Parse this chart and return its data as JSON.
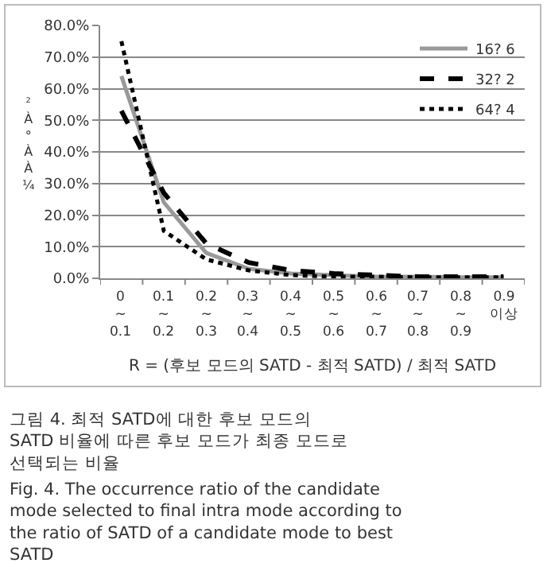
{
  "chart_data": {
    "type": "line",
    "categories": [
      "0 ~ 0.1",
      "0.1 ~ 0.2",
      "0.2 ~ 0.3",
      "0.3 ~ 0.4",
      "0.4 ~ 0.5",
      "0.5 ~ 0.6",
      "0.6 ~ 0.7",
      "0.7 ~ 0.8",
      "0.8 ~ 0.9",
      "0.9 이상"
    ],
    "series": [
      {
        "name": "16? 6",
        "color": "#999999",
        "line_style": "solid",
        "values": [
          64,
          24,
          8,
          3,
          1.5,
          1,
          0.5,
          0.5,
          0.3,
          0.3
        ]
      },
      {
        "name": "32? 2",
        "color": "#000000",
        "line_style": "dashed",
        "values": [
          53,
          27,
          11,
          5,
          2.5,
          1.5,
          1,
          0.5,
          0.5,
          0.5
        ]
      },
      {
        "name": "64? 4",
        "color": "#000000",
        "line_style": "dotted",
        "values": [
          75,
          15,
          6,
          2.5,
          1,
          0.5,
          0.5,
          0.3,
          0.3,
          0.3
        ]
      }
    ],
    "ylabel": "²À°ÀÀ¼",
    "xlabel": "R = (후보 모드의 SATD - 최적 SATD) / 최적 SATD",
    "ylim": [
      0,
      80
    ],
    "yticks": [
      {
        "value": 0,
        "label": "0.0%"
      },
      {
        "value": 10,
        "label": "10.0%"
      },
      {
        "value": 20,
        "label": "20.0%"
      },
      {
        "value": 30,
        "label": "30.0%"
      },
      {
        "value": 40,
        "label": "40.0%"
      },
      {
        "value": 50,
        "label": "50.0%"
      },
      {
        "value": 60,
        "label": "60.0%"
      },
      {
        "value": 70,
        "label": "70.0%"
      },
      {
        "value": 80,
        "label": "80.0%"
      }
    ],
    "grid": "y",
    "legend": "top right",
    "marker": "none",
    "annotations": [
      "그림 4. 최적 SATD에 대한 후보 모드의 SATD 비율에 따른 후보 모드가 최종 모드로 선택되는 비율",
      "Fig. 4. The occurrence ratio of the candidate mode selected to final intra mode according to the ratio of SATD of a candidate mode to best SATD"
    ]
  }
}
